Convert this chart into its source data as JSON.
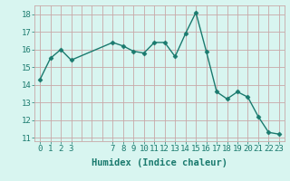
{
  "x": [
    0,
    1,
    2,
    3,
    7,
    8,
    9,
    10,
    11,
    12,
    13,
    14,
    15,
    16,
    17,
    18,
    19,
    20,
    21,
    22,
    23
  ],
  "y": [
    14.3,
    15.5,
    16.0,
    15.4,
    16.4,
    16.2,
    15.9,
    15.8,
    16.4,
    16.4,
    15.6,
    16.9,
    18.1,
    15.9,
    13.6,
    13.2,
    13.6,
    13.3,
    12.2,
    11.3,
    11.2
  ],
  "line_color": "#1a7a6e",
  "bg_color": "#d8f5f0",
  "grid_color": "#c8a8a8",
  "xlabel": "Humidex (Indice chaleur)",
  "ylim": [
    10.8,
    18.5
  ],
  "xlim": [
    -0.5,
    23.5
  ],
  "yticks": [
    11,
    12,
    13,
    14,
    15,
    16,
    17,
    18
  ],
  "xticks": [
    0,
    1,
    2,
    3,
    7,
    8,
    9,
    10,
    11,
    12,
    13,
    14,
    15,
    16,
    17,
    18,
    19,
    20,
    21,
    22,
    23
  ],
  "tick_color": "#1a7a6e",
  "tick_fontsize": 6.5,
  "xlabel_fontsize": 7.5,
  "marker_size": 2.5,
  "line_width": 1.0
}
